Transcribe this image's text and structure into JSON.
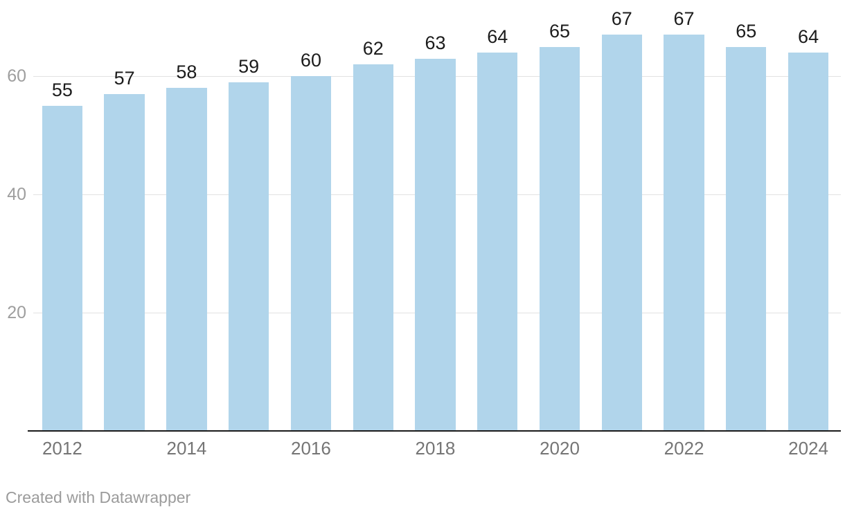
{
  "chart_data": {
    "type": "bar",
    "title": "",
    "categories": [
      "2012",
      "2013",
      "2014",
      "2015",
      "2016",
      "2017",
      "2018",
      "2019",
      "2020",
      "2021",
      "2022",
      "2023",
      "2024"
    ],
    "values": [
      55,
      57,
      58,
      59,
      60,
      62,
      63,
      64,
      65,
      67,
      67,
      65,
      64
    ],
    "value_labels": [
      "55",
      "57",
      "58",
      "59",
      "60",
      "62",
      "63",
      "64",
      "65",
      "67",
      "67",
      "65",
      "64"
    ],
    "x_tick_labels": [
      "2012",
      "",
      "2014",
      "",
      "2016",
      "",
      "2018",
      "",
      "2020",
      "",
      "2022",
      "",
      "2024"
    ],
    "y_ticks": [
      20,
      40,
      60
    ],
    "y_tick_labels": [
      "20",
      "40",
      "60"
    ],
    "ylim": [
      0,
      72.9
    ],
    "grid": "horizontal",
    "legend": "none",
    "xlabel": "",
    "ylabel": "",
    "colors": {
      "bar_fill": "#b1d5eb",
      "value_label": "#1c1c1c",
      "x_tick_label": "#757575",
      "y_tick_label": "#9e9e9e",
      "gridline": "#e2e2e2",
      "baseline": "#1a1a1a"
    }
  },
  "footer": {
    "credit": "Created with Datawrapper"
  }
}
